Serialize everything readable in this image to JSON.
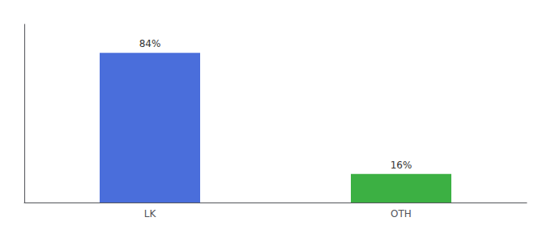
{
  "chart_data": {
    "type": "bar",
    "categories": [
      "LK",
      "OTH"
    ],
    "values": [
      84,
      16
    ],
    "value_labels": [
      "84%",
      "16%"
    ],
    "data_labels": true,
    "colors": [
      "#4a6edb",
      "#3cb043"
    ],
    "ylim": [
      0,
      100
    ],
    "tick_labels": "x",
    "grid": false
  }
}
